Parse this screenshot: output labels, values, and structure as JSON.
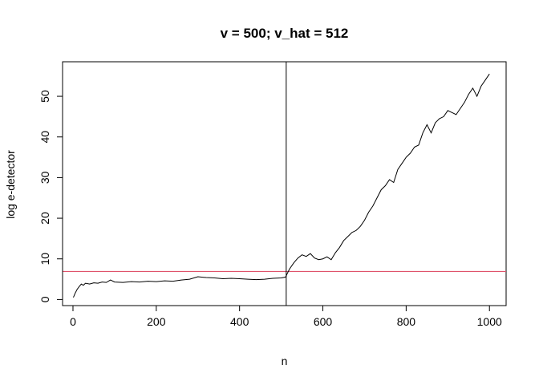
{
  "chart_data": {
    "type": "line",
    "title": "v = 500; v_hat = 512",
    "xlabel": "n",
    "ylabel": "log e-detector",
    "xlim": [
      -25,
      1040
    ],
    "ylim": [
      -1.5,
      58.5
    ],
    "x_ticks": [
      0,
      200,
      400,
      600,
      800,
      1000
    ],
    "y_ticks": [
      0,
      10,
      20,
      30,
      40,
      50
    ],
    "x_tick_labels": [
      "0",
      "200",
      "400",
      "600",
      "800",
      "1000"
    ],
    "y_tick_labels": [
      "0",
      "10",
      "20",
      "30",
      "40",
      "50"
    ],
    "grid": false,
    "legend": "none",
    "threshold": {
      "y": 6.9,
      "color": "#DF536B"
    },
    "vline": {
      "x": 512,
      "color": "#000000"
    },
    "series": [
      {
        "color": "#000000",
        "x": [
          1,
          5,
          10,
          15,
          20,
          25,
          30,
          40,
          50,
          60,
          70,
          80,
          90,
          100,
          120,
          140,
          160,
          180,
          200,
          220,
          240,
          260,
          280,
          300,
          320,
          340,
          360,
          380,
          400,
          420,
          440,
          460,
          480,
          500,
          505,
          510,
          512,
          515,
          520,
          530,
          540,
          550,
          560,
          570,
          580,
          590,
          600,
          610,
          620,
          630,
          640,
          650,
          660,
          670,
          680,
          690,
          700,
          710,
          720,
          730,
          740,
          750,
          760,
          770,
          780,
          790,
          800,
          810,
          820,
          830,
          840,
          850,
          860,
          870,
          880,
          890,
          900,
          910,
          920,
          930,
          940,
          950,
          960,
          970,
          980,
          990,
          1000
        ],
        "y": [
          0.5,
          1.5,
          2.5,
          3.2,
          3.8,
          3.5,
          4.0,
          3.8,
          4.1,
          4.0,
          4.3,
          4.2,
          4.8,
          4.3,
          4.2,
          4.4,
          4.3,
          4.5,
          4.4,
          4.6,
          4.5,
          4.8,
          5.0,
          5.6,
          5.4,
          5.3,
          5.1,
          5.2,
          5.1,
          5.0,
          4.9,
          5.0,
          5.2,
          5.3,
          5.4,
          5.5,
          5.8,
          6.5,
          7.5,
          9.0,
          10.2,
          11.0,
          10.6,
          11.3,
          10.2,
          9.8,
          10.0,
          10.5,
          9.8,
          11.5,
          12.8,
          14.5,
          15.5,
          16.5,
          17.0,
          18.0,
          19.5,
          21.5,
          23.0,
          25.0,
          27.0,
          28.0,
          29.5,
          28.8,
          32.0,
          33.5,
          35.0,
          36.0,
          37.5,
          38.0,
          41.0,
          43.0,
          41.0,
          43.5,
          44.5,
          45.0,
          46.5,
          46.0,
          45.5,
          47.0,
          48.5,
          50.5,
          52.0,
          50.0,
          52.5,
          54.0,
          55.5
        ]
      }
    ]
  }
}
